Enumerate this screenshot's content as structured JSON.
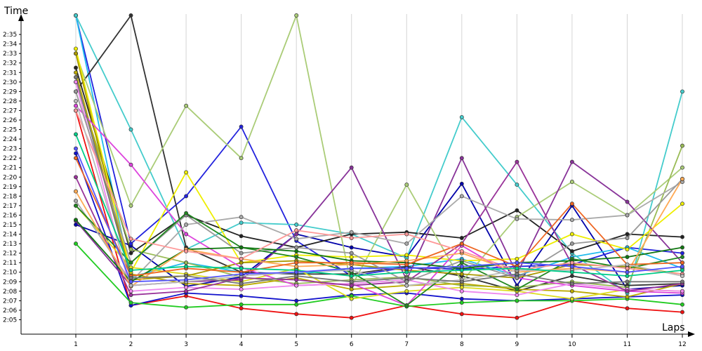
{
  "chart_data": {
    "type": "line",
    "xlabel": "Laps",
    "ylabel": "Time",
    "x": [
      1,
      2,
      3,
      4,
      5,
      6,
      7,
      8,
      9,
      10,
      11,
      12
    ],
    "x_tick_labels": [
      "1",
      "2",
      "3",
      "4",
      "5",
      "6",
      "7",
      "8",
      "9",
      "10",
      "11",
      "12"
    ],
    "y_tick_labels": [
      "2:05",
      "2:06",
      "2:07",
      "2:08",
      "2:09",
      "2:10",
      "2:11",
      "2:12",
      "2:13",
      "2:14",
      "2:15",
      "2:16",
      "2:17",
      "2:18",
      "2:19",
      "2:20",
      "2:21",
      "2:22",
      "2:23",
      "2:24",
      "2:25",
      "2:26",
      "2:27",
      "2:28",
      "2:29",
      "2:30",
      "2:31",
      "2:32",
      "2:33",
      "2:34",
      "2:35"
    ],
    "ylim": [
      "2:04",
      "2:37"
    ],
    "grid": "vertical",
    "series": [
      {
        "color": "#ee1111",
        "values": [
          "2:27.0",
          "2:06.5",
          "2:07.5",
          "2:06.2",
          "2:05.6",
          "2:05.2",
          "2:06.5",
          "2:05.6",
          "2:05.2",
          "2:07.0",
          "2:06.2",
          "2:05.8"
        ]
      },
      {
        "color": "#1111cc",
        "values": [
          "2:22.5",
          "2:06.5",
          "2:07.8",
          "2:07.5",
          "2:07.0",
          "2:07.6",
          "2:07.8",
          "2:07.2",
          "2:07.0",
          "2:07.2",
          "2:07.4",
          "2:07.6"
        ]
      },
      {
        "color": "#22cc22",
        "values": [
          "2:13.0",
          "2:06.8",
          "2:06.3",
          "2:06.6",
          "2:06.6",
          "2:07.5",
          "2:06.4",
          "2:06.8",
          "2:07.0",
          "2:07.0",
          "2:07.2",
          "2:06.6"
        ]
      },
      {
        "color": "#0000aa",
        "values": [
          "2:15.0",
          "2:12.8",
          "2:08.5",
          "2:09.5",
          "2:14.0",
          "2:12.6",
          "2:11.6",
          "2:19.3",
          "2:08.6",
          "2:17.0",
          "2:08.2",
          "2:08.6"
        ]
      },
      {
        "color": "#2222dd",
        "values": [
          "2:37.0",
          "2:13.0",
          "2:18.0",
          "2:25.3",
          "2:13.3",
          "2:09.6",
          "2:10.5",
          "2:10.3",
          "2:10.6",
          "2:10.8",
          "2:12.6",
          "2:12.0"
        ]
      },
      {
        "color": "#22bbee",
        "values": [
          "2:37.0",
          "2:09.5",
          "2:11.0",
          "2:10.0",
          "2:09.8",
          "2:10.4",
          "2:10.6",
          "2:11.4",
          "2:09.6",
          "2:11.6",
          "2:12.6",
          "2:10.4"
        ]
      },
      {
        "color": "#44cccc",
        "values": [
          "2:37.0",
          "2:25.0",
          "2:12.4",
          "2:15.2",
          "2:15.0",
          "2:14.0",
          "2:11.5",
          "2:26.3",
          "2:19.2",
          "2:12.0",
          "2:07.8",
          "2:29.0"
        ]
      },
      {
        "color": "#222222",
        "values": [
          "2:31.5",
          "2:12.0",
          "2:16.0",
          "2:13.8",
          "2:12.6",
          "2:14.0",
          "2:14.2",
          "2:13.6",
          "2:16.5",
          "2:12.2",
          "2:14.0",
          "2:13.7"
        ]
      },
      {
        "color": "#333333",
        "values": [
          "2:29.0",
          "2:37.0",
          "2:12.6",
          "2:10.0",
          "2:09.8",
          "2:09.8",
          "2:10.6",
          "2:09.6",
          "2:08.0",
          "2:09.6",
          "2:08.6",
          "2:08.8"
        ]
      },
      {
        "color": "#aacc77",
        "values": [
          "2:33.0",
          "2:17.0",
          "2:27.5",
          "2:22.0",
          "2:37.0",
          "2:08.5",
          "2:19.2",
          "2:09.0",
          "2:15.8",
          "2:19.5",
          "2:16.0",
          "2:21.0"
        ]
      },
      {
        "color": "#99bb55",
        "values": [
          "2:30.0",
          "2:12.4",
          "2:11.0",
          "2:09.5",
          "2:08.8",
          "2:09.2",
          "2:09.5",
          "2:08.6",
          "2:08.4",
          "2:09.0",
          "2:08.4",
          "2:23.3"
        ]
      },
      {
        "color": "#bbaa00",
        "values": [
          "2:31.0",
          "2:09.8",
          "2:08.8",
          "2:08.6",
          "2:09.4",
          "2:08.2",
          "2:08.6",
          "2:08.8",
          "2:08.2",
          "2:08.0",
          "2:07.4",
          "2:08.8"
        ]
      },
      {
        "color": "#eeee00",
        "values": [
          "2:33.5",
          "2:10.0",
          "2:20.5",
          "2:11.0",
          "2:11.8",
          "2:11.6",
          "2:11.8",
          "2:11.2",
          "2:11.4",
          "2:14.0",
          "2:12.4",
          "2:17.2"
        ]
      },
      {
        "color": "#dddd22",
        "values": [
          "2:17.0",
          "2:10.5",
          "2:09.8",
          "2:09.0",
          "2:10.4",
          "2:07.2",
          "2:08.0",
          "2:08.4",
          "2:08.0",
          "2:07.2",
          "2:08.2",
          "2:08.0"
        ]
      },
      {
        "color": "#aa9900",
        "values": [
          "2:33.0",
          "2:09.2",
          "2:09.6",
          "2:11.0",
          "2:11.2",
          "2:10.8",
          "2:10.2",
          "2:09.8",
          "2:09.4",
          "2:10.8",
          "2:10.6",
          "2:09.8"
        ]
      },
      {
        "color": "#dd44dd",
        "values": [
          "2:27.5",
          "2:21.3",
          "2:14.0",
          "2:10.5",
          "2:08.6",
          "2:08.8",
          "2:06.5",
          "2:12.8",
          "2:09.4",
          "2:08.6",
          "2:08.0",
          "2:07.8"
        ]
      },
      {
        "color": "#ee88ee",
        "values": [
          "2:30.0",
          "2:08.0",
          "2:08.4",
          "2:08.2",
          "2:08.6",
          "2:08.8",
          "2:09.2",
          "2:08.0",
          "2:07.6",
          "2:08.8",
          "2:08.2",
          "2:08.0"
        ]
      },
      {
        "color": "#883399",
        "values": [
          "2:15.4",
          "2:08.6",
          "2:09.0",
          "2:09.2",
          "2:14.0",
          "2:21.0",
          "2:09.2",
          "2:22.0",
          "2:09.8",
          "2:21.6",
          "2:17.4",
          "2:11.0"
        ]
      },
      {
        "color": "#993399",
        "values": [
          "2:20.0",
          "2:07.6",
          "2:08.0",
          "2:09.4",
          "2:09.2",
          "2:08.6",
          "2:09.0",
          "2:13.0",
          "2:21.6",
          "2:10.8",
          "2:08.0",
          "2:08.8"
        ]
      },
      {
        "color": "#aaaaaa",
        "values": [
          "2:17.5",
          "2:09.0",
          "2:15.0",
          "2:15.8",
          "2:13.5",
          "2:14.2",
          "2:13.0",
          "2:18.0",
          "2:15.6",
          "2:15.5",
          "2:16.0",
          "2:19.5"
        ]
      },
      {
        "color": "#999999",
        "values": [
          "2:29.0",
          "2:11.0",
          "2:16.0",
          "2:12.0",
          "2:12.6",
          "2:12.0",
          "2:09.0",
          "2:11.2",
          "2:09.4",
          "2:13.0",
          "2:13.6",
          "2:19.8"
        ]
      },
      {
        "color": "#228822",
        "values": [
          "2:17.0",
          "2:11.0",
          "2:16.2",
          "2:12.6",
          "2:11.6",
          "2:10.0",
          "2:06.5",
          "2:11.0",
          "2:08.2",
          "2:11.4",
          "2:10.4",
          "2:11.6"
        ]
      },
      {
        "color": "#117711",
        "values": [
          "2:15.5",
          "2:09.0",
          "2:12.4",
          "2:12.6",
          "2:12.2",
          "2:11.2",
          "2:11.0",
          "2:10.4",
          "2:11.0",
          "2:11.2",
          "2:11.6",
          "2:12.6"
        ]
      },
      {
        "color": "#ffaa55",
        "values": [
          "2:18.5",
          "2:08.5",
          "2:12.4",
          "2:11.4",
          "2:10.6",
          "2:10.8",
          "2:11.2",
          "2:12.0",
          "2:10.0",
          "2:10.4",
          "2:10.0",
          "2:19.8"
        ]
      },
      {
        "color": "#ee6622",
        "values": [
          "2:22.0",
          "2:09.6",
          "2:10.4",
          "2:10.0",
          "2:11.0",
          "2:11.0",
          "2:10.8",
          "2:13.0",
          "2:10.6",
          "2:17.2",
          "2:10.8",
          "2:11.0"
        ]
      },
      {
        "color": "#ff9999",
        "values": [
          "2:27.0",
          "2:13.5",
          "2:12.2",
          "2:11.4",
          "2:14.4",
          "2:13.6",
          "2:14.0",
          "2:12.2",
          "2:10.2",
          "2:11.0",
          "2:10.4",
          "2:09.8"
        ]
      },
      {
        "color": "#bbbbbb",
        "values": [
          "2:28.0",
          "2:08.6",
          "2:09.0",
          "2:09.6",
          "2:10.0",
          "2:10.2",
          "2:08.6",
          "2:09.2",
          "2:10.2",
          "2:10.2",
          "2:10.8",
          "2:09.6"
        ]
      },
      {
        "color": "#777777",
        "values": [
          "2:30.5",
          "2:09.4",
          "2:09.6",
          "2:08.8",
          "2:09.6",
          "2:09.0",
          "2:09.4",
          "2:09.0",
          "2:09.8",
          "2:08.8",
          "2:09.0",
          "2:09.0"
        ]
      },
      {
        "color": "#00cc88",
        "values": [
          "2:24.5",
          "2:10.2",
          "2:10.6",
          "2:10.4",
          "2:10.2",
          "2:09.6",
          "2:10.0",
          "2:10.2",
          "2:10.4",
          "2:10.0",
          "2:09.6",
          "2:10.2"
        ]
      },
      {
        "color": "#5555ff",
        "values": [
          "2:23.0",
          "2:09.0",
          "2:09.2",
          "2:09.8",
          "2:10.0",
          "2:10.4",
          "2:10.4",
          "2:10.6",
          "2:11.0",
          "2:10.6",
          "2:10.0",
          "2:10.6"
        ]
      }
    ]
  }
}
